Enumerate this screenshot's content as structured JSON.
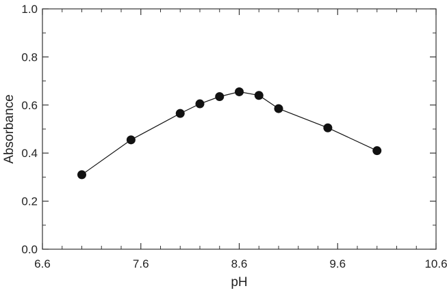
{
  "chart_data": {
    "type": "scatter",
    "title": "",
    "xlabel": "pH",
    "ylabel": "Absorbance",
    "xlim": [
      6.6,
      10.6
    ],
    "ylim": [
      0.0,
      1.0
    ],
    "x_ticks": [
      "6.6",
      "7.6",
      "8.6",
      "9.6",
      "10.6"
    ],
    "y_ticks": [
      "0.0",
      "0.2",
      "0.4",
      "0.6",
      "0.8",
      "1.0"
    ],
    "grid": false,
    "connected": true,
    "marker": "filled-circle",
    "colors": {
      "marker": "#111111",
      "line": "#111111",
      "axis": "#333333"
    },
    "series": [
      {
        "x": [
          7.0,
          7.5,
          8.0,
          8.2,
          8.4,
          8.6,
          8.8,
          9.0,
          9.5,
          10.0
        ],
        "y": [
          0.31,
          0.455,
          0.565,
          0.605,
          0.635,
          0.655,
          0.64,
          0.585,
          0.505,
          0.41
        ]
      }
    ]
  }
}
